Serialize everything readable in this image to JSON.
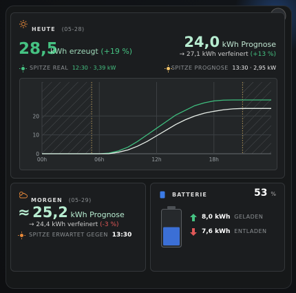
{
  "today": {
    "title": "HEUTE",
    "date": "(05-28)",
    "produced": "28,5",
    "produced_unit": "kWh erzeugt",
    "produced_delta": "(+19 %)",
    "forecast": "24,0",
    "forecast_unit": "kWh Prognose",
    "refined": "→ 27,1 kWh verfeinert",
    "refined_delta": "(+13 %)",
    "peak_real_label": "SPITZE REAL",
    "peak_real": "12:30 · 3,39 kW",
    "peak_forecast_label": "SPITZE PROGNOSE",
    "peak_forecast": "13:30 · 2,95 kW"
  },
  "chart_data": {
    "type": "line",
    "x": [
      0,
      1,
      2,
      3,
      4,
      5,
      6,
      7,
      8,
      9,
      10,
      11,
      12,
      13,
      14,
      15,
      16,
      17,
      18,
      19,
      20,
      21,
      22,
      23,
      24
    ],
    "series": [
      {
        "color": "#3fbf7f",
        "values": [
          0,
          0,
          0,
          0,
          0,
          0,
          0,
          0.3,
          1.5,
          3.5,
          6.5,
          10,
          13.5,
          17,
          20.5,
          23,
          25.5,
          27,
          28,
          28.4,
          28.5,
          28.5,
          28.5,
          28.5,
          28.5
        ]
      },
      {
        "color": "#e8efe9",
        "values": [
          0,
          0,
          0,
          0,
          0,
          0,
          0,
          0,
          0.8,
          2,
          4,
          6.5,
          9.5,
          12.5,
          15.5,
          18,
          20,
          21.5,
          22.5,
          23.3,
          23.8,
          24,
          24,
          24,
          24
        ]
      }
    ],
    "xlim": [
      0,
      24
    ],
    "ylim": [
      0,
      38
    ],
    "xticks": [
      {
        "value": 0,
        "label": "00h"
      },
      {
        "value": 6,
        "label": "06h"
      },
      {
        "value": 12,
        "label": "12h"
      },
      {
        "value": 18,
        "label": "18h"
      }
    ],
    "yticks": [
      0,
      10,
      20
    ],
    "grid": true,
    "shaded_ranges": [
      [
        0,
        5.2
      ],
      [
        21,
        24
      ]
    ]
  },
  "tomorrow": {
    "title": "MORGEN",
    "date": "(05-29)",
    "approx": "≈",
    "forecast": "25,2",
    "forecast_unit": "kWh Prognose",
    "refined": "→ 24,4 kWh verfeinert",
    "refined_delta": "(-3 %)",
    "peak_label": "SPITZE ERWARTET GEGEN",
    "peak": "13:30"
  },
  "battery": {
    "title": "BATTERIE",
    "percent": 53,
    "percent_unit": "%",
    "charged": "8,0 kWh",
    "charged_label": "GELADEN",
    "discharged": "7,6 kWh",
    "discharged_label": "ENTLADEN"
  }
}
